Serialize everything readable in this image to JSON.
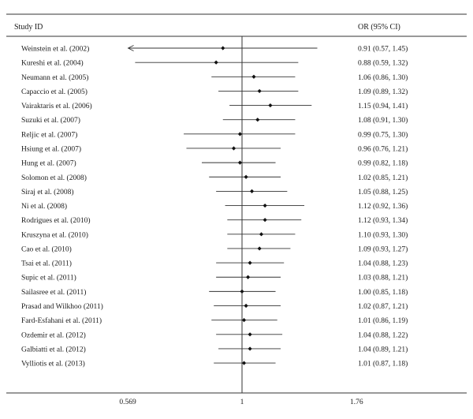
{
  "chart_data": {
    "type": "forest",
    "header": {
      "study_label": "Study ID",
      "estimate_label": "OR (95% CI)"
    },
    "null_value": 1,
    "x_scale": "log",
    "x_ticks": [
      {
        "value": 0.569,
        "label": "0.569"
      },
      {
        "value": 1,
        "label": "1"
      },
      {
        "value": 1.76,
        "label": "1.76"
      }
    ],
    "studies": [
      {
        "study": "Weinstein et al. (2002)",
        "or": 0.91,
        "lower": 0.57,
        "upper": 1.45,
        "ci_text": "0.91 (0.57, 1.45)",
        "lower_arrow": true
      },
      {
        "study": "Kureshi et al. (2004)",
        "or": 0.88,
        "lower": 0.59,
        "upper": 1.32,
        "ci_text": "0.88 (0.59, 1.32)"
      },
      {
        "study": "Neumann et al. (2005)",
        "or": 1.06,
        "lower": 0.86,
        "upper": 1.3,
        "ci_text": "1.06 (0.86, 1.30)"
      },
      {
        "study": "Capaccio et al. (2005)",
        "or": 1.09,
        "lower": 0.89,
        "upper": 1.32,
        "ci_text": "1.09 (0.89, 1.32)"
      },
      {
        "study": "Vairaktaris et al. (2006)",
        "or": 1.15,
        "lower": 0.94,
        "upper": 1.41,
        "ci_text": "1.15 (0.94, 1.41)"
      },
      {
        "study": "Suzuki et al. (2007)",
        "or": 1.08,
        "lower": 0.91,
        "upper": 1.3,
        "ci_text": "1.08 (0.91, 1.30)"
      },
      {
        "study": "Reljic et al. (2007)",
        "or": 0.99,
        "lower": 0.75,
        "upper": 1.3,
        "ci_text": "0.99 (0.75, 1.30)"
      },
      {
        "study": "Hsiung et al. (2007)",
        "or": 0.96,
        "lower": 0.76,
        "upper": 1.21,
        "ci_text": "0.96 (0.76, 1.21)"
      },
      {
        "study": "Hung et al. (2007)",
        "or": 0.99,
        "lower": 0.82,
        "upper": 1.18,
        "ci_text": "0.99 (0.82, 1.18)"
      },
      {
        "study": "Solomon et al. (2008)",
        "or": 1.02,
        "lower": 0.85,
        "upper": 1.21,
        "ci_text": "1.02 (0.85, 1.21)"
      },
      {
        "study": "Siraj et al. (2008)",
        "or": 1.05,
        "lower": 0.88,
        "upper": 1.25,
        "ci_text": "1.05 (0.88, 1.25)"
      },
      {
        "study": "Ni et al. (2008)",
        "or": 1.12,
        "lower": 0.92,
        "upper": 1.36,
        "ci_text": "1.12 (0.92, 1.36)"
      },
      {
        "study": "Rodrigues et al. (2010)",
        "or": 1.12,
        "lower": 0.93,
        "upper": 1.34,
        "ci_text": "1.12 (0.93, 1.34)"
      },
      {
        "study": "Kruszyna et al. (2010)",
        "or": 1.1,
        "lower": 0.93,
        "upper": 1.3,
        "ci_text": "1.10 (0.93, 1.30)"
      },
      {
        "study": "Cao et al. (2010)",
        "or": 1.09,
        "lower": 0.93,
        "upper": 1.27,
        "ci_text": "1.09 (0.93, 1.27)"
      },
      {
        "study": "Tsai et al. (2011)",
        "or": 1.04,
        "lower": 0.88,
        "upper": 1.23,
        "ci_text": "1.04 (0.88, 1.23)"
      },
      {
        "study": "Supic et al. (2011)",
        "or": 1.03,
        "lower": 0.88,
        "upper": 1.21,
        "ci_text": "1.03 (0.88, 1.21)"
      },
      {
        "study": "Sailasree et al. (2011)",
        "or": 1.0,
        "lower": 0.85,
        "upper": 1.18,
        "ci_text": "1.00 (0.85, 1.18)"
      },
      {
        "study": "Prasad and Wilkhoo (2011)",
        "or": 1.02,
        "lower": 0.87,
        "upper": 1.21,
        "ci_text": "1.02 (0.87, 1.21)"
      },
      {
        "study": "Fard-Esfahani et al. (2011)",
        "or": 1.01,
        "lower": 0.86,
        "upper": 1.19,
        "ci_text": "1.01 (0.86, 1.19)"
      },
      {
        "study": "Ozdemir et al. (2012)",
        "or": 1.04,
        "lower": 0.88,
        "upper": 1.22,
        "ci_text": "1.04 (0.88, 1.22)"
      },
      {
        "study": "Galbiatti et al. (2012)",
        "or": 1.04,
        "lower": 0.89,
        "upper": 1.21,
        "ci_text": "1.04 (0.89, 1.21)"
      },
      {
        "study": "Vylliotis et al. (2013)",
        "or": 1.01,
        "lower": 0.87,
        "upper": 1.18,
        "ci_text": "1.01 (0.87, 1.18)"
      }
    ]
  }
}
